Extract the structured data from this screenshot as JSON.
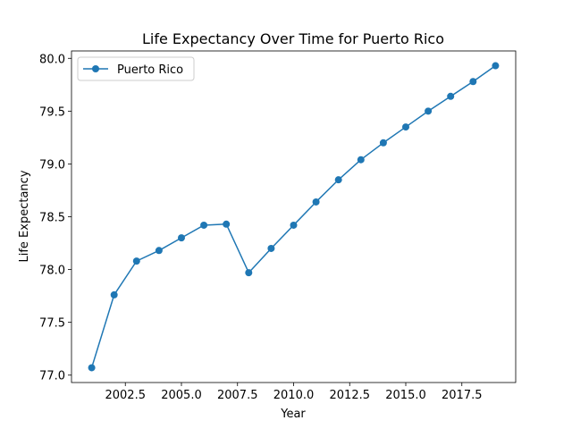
{
  "chart_data": {
    "type": "line",
    "title": "Life Expectancy Over Time for Puerto Rico",
    "xlabel": "Year",
    "ylabel": "Life Expectancy",
    "xlim": [
      2000.1,
      2019.9
    ],
    "ylim": [
      76.93,
      80.07
    ],
    "x_ticks": [
      2002.5,
      2005.0,
      2007.5,
      2010.0,
      2012.5,
      2015.0,
      2017.5
    ],
    "x_tick_labels": [
      "2002.5",
      "2005.0",
      "2007.5",
      "2010.0",
      "2012.5",
      "2015.0",
      "2017.5"
    ],
    "y_ticks": [
      77.0,
      77.5,
      78.0,
      78.5,
      79.0,
      79.5,
      80.0
    ],
    "y_tick_labels": [
      "77.0",
      "77.5",
      "78.0",
      "78.5",
      "79.0",
      "79.5",
      "80.0"
    ],
    "grid": false,
    "legend_position": "top-left",
    "series": [
      {
        "name": "Puerto Rico",
        "color": "#1f77b4",
        "marker": "circle",
        "x": [
          2001,
          2002,
          2003,
          2004,
          2005,
          2006,
          2007,
          2008,
          2009,
          2010,
          2011,
          2012,
          2013,
          2014,
          2015,
          2016,
          2017,
          2018,
          2019
        ],
        "y": [
          77.07,
          77.76,
          78.08,
          78.18,
          78.3,
          78.42,
          78.43,
          77.97,
          78.2,
          78.42,
          78.64,
          78.85,
          79.04,
          79.2,
          79.35,
          79.5,
          79.64,
          79.78,
          79.93
        ]
      }
    ]
  }
}
